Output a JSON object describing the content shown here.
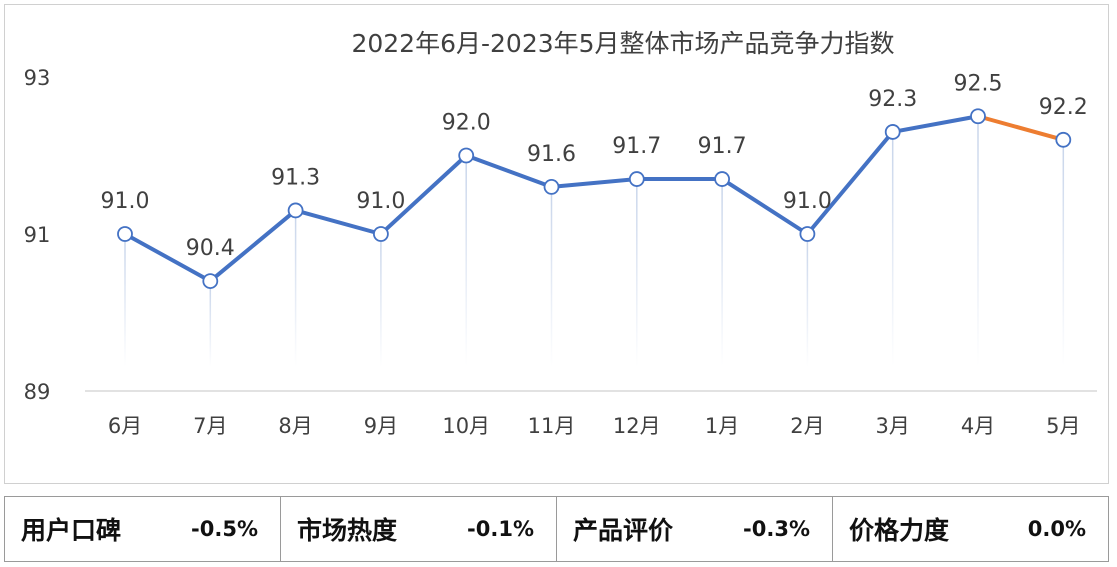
{
  "chart_data": {
    "type": "line",
    "title": "2022年6月-2023年5月整体市场产品竞争力指数",
    "categories": [
      "6月",
      "7月",
      "8月",
      "9月",
      "10月",
      "11月",
      "12月",
      "1月",
      "2月",
      "3月",
      "4月",
      "5月"
    ],
    "values": [
      91.0,
      90.4,
      91.3,
      91.0,
      92.0,
      91.6,
      91.7,
      91.7,
      91.0,
      92.3,
      92.5,
      92.2
    ],
    "labels": [
      "91.0",
      "90.4",
      "91.3",
      "91.0",
      "92.0",
      "91.6",
      "91.7",
      "91.7",
      "91.0",
      "92.3",
      "92.5",
      "92.2"
    ],
    "yticks": [
      "89",
      "91",
      "93"
    ],
    "ylim": [
      89,
      93
    ],
    "grid": false,
    "colors": {
      "line": "#4472c4",
      "highlight": "#ed7d31",
      "axis": "#d9d9d9",
      "drop_line": "#c7d4ea"
    }
  },
  "summary": [
    {
      "name": "用户口碑",
      "value": "-0.5%"
    },
    {
      "name": "市场热度",
      "value": "-0.1%"
    },
    {
      "name": "产品评价",
      "value": "-0.3%"
    },
    {
      "name": "价格力度",
      "value": "0.0%"
    }
  ]
}
